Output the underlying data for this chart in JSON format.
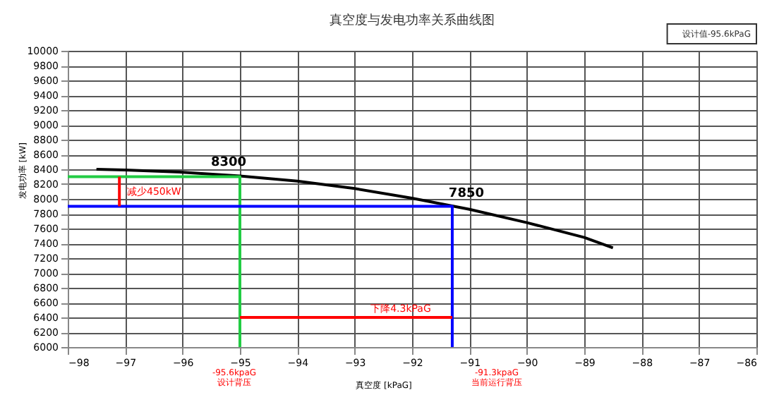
{
  "chart_data": {
    "type": "line",
    "title": "真空度与发电功率关系曲线图",
    "xlabel": "真空度 [kPaG]",
    "ylabel": "发电功率 [kW]",
    "xlim": [
      -98,
      -86
    ],
    "xticks": [
      -98,
      -97,
      -96,
      -95,
      -94,
      -93,
      -92,
      -91,
      -90,
      -89,
      -88,
      -87,
      -86
    ],
    "ylim": [
      6000,
      10000
    ],
    "yticks": [
      6000,
      6200,
      6400,
      6600,
      6800,
      7000,
      7200,
      7400,
      7600,
      7800,
      8000,
      8200,
      8400,
      8600,
      8800,
      9000,
      9200,
      9400,
      9600,
      9800,
      10000
    ],
    "grid": true,
    "line_style": "solid",
    "series": [
      {
        "color": "#000000",
        "x": [
          -97.5,
          -97,
          -96,
          -95,
          -94,
          -93,
          -92,
          -91,
          -90,
          -89,
          -88.5
        ],
        "values": [
          8400,
          8390,
          8360,
          8310,
          8240,
          8140,
          8010,
          7860,
          7680,
          7480,
          7340
        ]
      },
      {
        "color": "#22cc44",
        "x": [
          -98,
          -95,
          -95
        ],
        "values": [
          8300,
          8300,
          6000
        ]
      },
      {
        "color": "#0000ff",
        "x": [
          -98,
          -91.3,
          -91.3
        ],
        "values": [
          7900,
          7900,
          6000
        ]
      },
      {
        "color": "#ff0000",
        "x": [
          -97.1,
          -97.1
        ],
        "values": [
          8300,
          7900
        ]
      },
      {
        "color": "#ff0000",
        "x": [
          -95,
          -91.3
        ],
        "values": [
          6400,
          6400
        ]
      }
    ],
    "annotations": [
      {
        "text": "8300",
        "x": -95,
        "y": 8310
      },
      {
        "text": "7850",
        "x": -91.3,
        "y": 7900
      },
      "减少450kW",
      "下降4.3kPaG",
      "-95.6kpaG",
      "设计背压",
      "-91.3kpaG",
      "当前运行背压",
      "设计值-95.6kPaG"
    ]
  }
}
